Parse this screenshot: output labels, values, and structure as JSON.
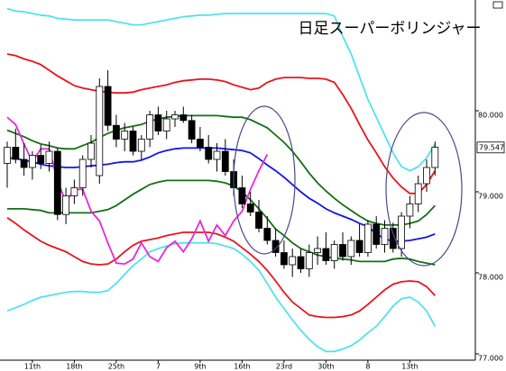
{
  "chart_data": {
    "type": "candlestick",
    "title": "日足スーパーボリンジャー",
    "categories": [
      null,
      null,
      null,
      "11th",
      null,
      null,
      null,
      null,
      "18th",
      null,
      null,
      null,
      null,
      "25th",
      null,
      null,
      null,
      null,
      "7",
      null,
      null,
      null,
      null,
      "9th",
      null,
      null,
      null,
      null,
      "16th",
      null,
      null,
      null,
      null,
      "23rd",
      null,
      null,
      null,
      null,
      "30th",
      null,
      null,
      null,
      null,
      "8",
      null,
      null,
      null,
      null,
      "13th",
      null,
      null,
      null
    ],
    "open": [
      79.35,
      79.55,
      79.4,
      79.3,
      79.45,
      79.35,
      79.5,
      78.72,
      78.95,
      79.05,
      79.4,
      79.2,
      80.3,
      79.82,
      79.65,
      79.75,
      79.5,
      79.65,
      79.95,
      79.75,
      79.9,
      79.95,
      79.88,
      79.65,
      79.55,
      79.4,
      79.5,
      79.25,
      79.05,
      78.85,
      78.75,
      78.55,
      78.4,
      78.25,
      78.1,
      78.2,
      78.05,
      78.25,
      78.3,
      78.15,
      78.35,
      78.2,
      78.4,
      78.25,
      78.6,
      78.35,
      78.55,
      78.3,
      78.7,
      78.85,
      79.1,
      79.3
    ],
    "high": [
      79.62,
      79.78,
      79.6,
      79.5,
      79.58,
      79.62,
      79.55,
      79.05,
      79.15,
      79.45,
      79.7,
      80.4,
      80.5,
      79.95,
      79.85,
      79.8,
      79.7,
      80.0,
      80.05,
      80.0,
      80.0,
      80.05,
      79.95,
      79.8,
      79.7,
      79.6,
      79.65,
      79.4,
      79.2,
      79.0,
      78.9,
      78.7,
      78.55,
      78.4,
      78.3,
      78.3,
      78.35,
      78.45,
      78.5,
      78.4,
      78.5,
      78.45,
      78.6,
      78.65,
      78.7,
      78.65,
      78.62,
      78.75,
      78.95,
      79.2,
      79.4,
      79.62
    ],
    "low": [
      79.05,
      79.35,
      79.2,
      79.15,
      79.28,
      79.25,
      78.65,
      78.6,
      78.85,
      78.95,
      79.3,
      79.1,
      79.75,
      79.55,
      79.5,
      79.45,
      79.4,
      79.55,
      79.7,
      79.65,
      79.8,
      79.85,
      79.6,
      79.5,
      79.35,
      79.25,
      79.2,
      78.95,
      78.8,
      78.7,
      78.5,
      78.35,
      78.2,
      78.05,
      77.95,
      78.0,
      77.95,
      78.1,
      78.1,
      78.05,
      78.15,
      78.1,
      78.2,
      78.2,
      78.3,
      78.25,
      78.25,
      78.2,
      78.55,
      78.75,
      79.0,
      79.2
    ],
    "close": [
      79.55,
      79.4,
      79.3,
      79.45,
      79.35,
      79.5,
      78.72,
      78.95,
      79.05,
      79.4,
      79.6,
      80.3,
      79.82,
      79.65,
      79.75,
      79.5,
      79.65,
      79.95,
      79.75,
      79.9,
      79.95,
      79.88,
      79.65,
      79.55,
      79.4,
      79.5,
      79.25,
      79.05,
      78.85,
      78.75,
      78.55,
      78.4,
      78.25,
      78.1,
      78.2,
      78.05,
      78.25,
      78.3,
      78.15,
      78.35,
      78.2,
      78.4,
      78.25,
      78.6,
      78.35,
      78.55,
      78.3,
      78.7,
      78.85,
      79.1,
      79.3,
      79.55
    ],
    "up_color": "#ffffff",
    "down_color": "#000000",
    "lines": [
      {
        "color": "#4fe3ef",
        "values": [
          81.26,
          81.23,
          81.22,
          81.2,
          81.18,
          81.17,
          81.14,
          81.13,
          81.12,
          81.12,
          81.12,
          81.12,
          81.12,
          81.1,
          81.08,
          81.06,
          81.06,
          81.08,
          81.1,
          81.12,
          81.14,
          81.16,
          81.17,
          81.18,
          81.18,
          81.19,
          81.2,
          81.2,
          81.2,
          81.2,
          81.2,
          81.2,
          81.2,
          81.2,
          81.2,
          81.2,
          81.2,
          81.2,
          81.2,
          81.17,
          80.92,
          80.7,
          80.42,
          80.14,
          79.92,
          79.7,
          79.48,
          79.31,
          79.26,
          79.31,
          79.42,
          79.59
        ]
      },
      {
        "color": "#e8141e",
        "values": [
          80.7,
          80.68,
          80.64,
          80.61,
          80.57,
          80.5,
          80.43,
          80.37,
          80.31,
          80.28,
          80.26,
          80.24,
          80.23,
          80.22,
          80.22,
          80.23,
          80.26,
          80.28,
          80.3,
          80.32,
          80.35,
          80.37,
          80.38,
          80.39,
          80.39,
          80.38,
          80.36,
          80.32,
          80.29,
          80.26,
          80.28,
          80.35,
          80.39,
          80.41,
          80.41,
          80.41,
          80.4,
          80.4,
          80.39,
          80.35,
          80.2,
          80.03,
          79.83,
          79.64,
          79.48,
          79.31,
          79.17,
          79.06,
          78.98,
          78.98,
          79.09,
          79.26
        ]
      },
      {
        "color": "#127012",
        "values": [
          79.76,
          79.72,
          79.68,
          79.63,
          79.59,
          79.57,
          79.54,
          79.53,
          79.53,
          79.57,
          79.61,
          79.67,
          79.72,
          79.76,
          79.79,
          79.81,
          79.83,
          79.87,
          79.9,
          79.92,
          79.93,
          79.94,
          79.94,
          79.94,
          79.94,
          79.94,
          79.93,
          79.92,
          79.92,
          79.89,
          79.84,
          79.79,
          79.7,
          79.61,
          79.5,
          79.37,
          79.23,
          79.11,
          79.01,
          78.92,
          78.84,
          78.77,
          78.7,
          78.64,
          78.61,
          78.59,
          78.59,
          78.59,
          78.61,
          78.64,
          78.72,
          78.83
        ]
      },
      {
        "color": "#1414e6",
        "values": [
          79.42,
          79.41,
          79.39,
          79.37,
          79.34,
          79.32,
          79.31,
          79.3,
          79.3,
          79.31,
          79.32,
          79.33,
          79.34,
          79.36,
          79.37,
          79.37,
          79.39,
          79.43,
          79.48,
          79.51,
          79.53,
          79.54,
          79.54,
          79.54,
          79.54,
          79.54,
          79.53,
          79.52,
          79.51,
          79.48,
          79.41,
          79.33,
          79.26,
          79.18,
          79.09,
          79.0,
          78.92,
          78.86,
          78.79,
          78.74,
          78.7,
          78.66,
          78.61,
          78.57,
          78.48,
          78.42,
          78.39,
          78.39,
          78.4,
          78.42,
          78.44,
          78.48
        ]
      },
      {
        "color": "#127012",
        "values": [
          78.79,
          78.79,
          78.79,
          78.78,
          78.77,
          78.74,
          78.74,
          78.74,
          78.74,
          78.74,
          78.74,
          78.76,
          78.78,
          78.83,
          78.9,
          78.97,
          79.03,
          79.09,
          79.12,
          79.14,
          79.14,
          79.14,
          79.14,
          79.14,
          79.14,
          79.13,
          79.11,
          79.07,
          79.0,
          78.9,
          78.79,
          78.67,
          78.54,
          78.46,
          78.37,
          78.3,
          78.26,
          78.22,
          78.2,
          78.18,
          78.17,
          78.16,
          78.14,
          78.14,
          78.14,
          78.14,
          78.17,
          78.18,
          78.17,
          78.14,
          78.12,
          78.1
        ]
      },
      {
        "color": "#e8141e",
        "values": [
          78.68,
          78.61,
          78.53,
          78.46,
          78.39,
          78.34,
          78.3,
          78.26,
          78.2,
          78.14,
          78.11,
          78.1,
          78.11,
          78.17,
          78.26,
          78.34,
          78.39,
          78.41,
          78.43,
          78.46,
          78.48,
          78.5,
          78.5,
          78.5,
          78.5,
          78.48,
          78.44,
          78.39,
          78.31,
          78.23,
          78.14,
          78.03,
          77.9,
          77.76,
          77.64,
          77.56,
          77.48,
          77.46,
          77.45,
          77.45,
          77.46,
          77.48,
          77.53,
          77.61,
          77.7,
          77.79,
          77.86,
          77.89,
          77.9,
          77.89,
          77.83,
          77.72
        ]
      },
      {
        "color": "#4fe3ef",
        "values": [
          77.53,
          77.57,
          77.61,
          77.66,
          77.7,
          77.72,
          77.74,
          77.76,
          77.77,
          77.77,
          77.76,
          77.76,
          77.78,
          77.87,
          77.98,
          78.09,
          78.17,
          78.26,
          78.3,
          78.33,
          78.36,
          78.37,
          78.37,
          78.37,
          78.37,
          78.36,
          78.33,
          78.3,
          78.23,
          78.14,
          78.03,
          77.87,
          77.7,
          77.56,
          77.42,
          77.29,
          77.18,
          77.09,
          77.03,
          77.03,
          77.06,
          77.1,
          77.17,
          77.26,
          77.34,
          77.46,
          77.59,
          77.68,
          77.7,
          77.64,
          77.53,
          77.34
        ]
      },
      {
        "color": "#e628dc",
        "values": [
          79.92,
          79.83,
          79.59,
          79.37,
          79.53,
          79.53,
          79.14,
          78.87,
          79.03,
          79.03,
          78.76,
          78.64,
          78.37,
          78.12,
          78.11,
          78.17,
          78.37,
          78.2,
          78.14,
          78.31,
          78.39,
          78.26,
          78.42,
          78.64,
          78.39,
          78.59,
          78.46,
          78.64,
          78.76,
          79.03,
          79.26,
          79.46,
          null,
          null,
          null,
          null,
          null,
          null,
          null,
          null,
          null,
          null,
          null,
          null,
          null,
          null,
          null,
          null,
          null,
          null,
          null,
          null
        ]
      }
    ],
    "ylim": [
      76.922,
      81.367
    ],
    "yticks": [
      {
        "value": 77,
        "label": "77.000"
      },
      {
        "value": 78,
        "label": "78.000"
      },
      {
        "value": 79,
        "label": "79.000"
      },
      {
        "value": 80,
        "label": "80.000"
      }
    ],
    "last_price": 79.547
  }
}
